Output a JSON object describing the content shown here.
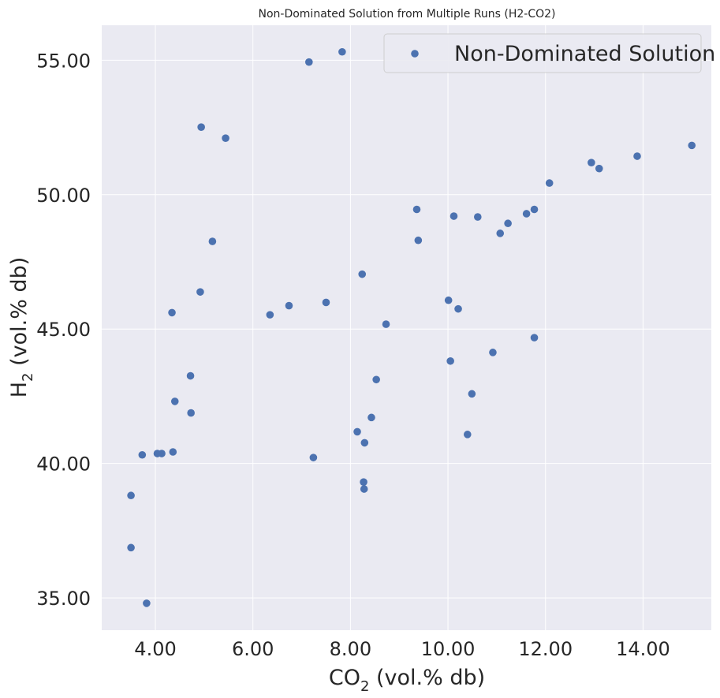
{
  "chart_data": {
    "type": "scatter",
    "title": "Non-Dominated Solution from Multiple Runs (H2-CO2)",
    "xlabel": {
      "main": "CO",
      "sub": "2",
      "rest": " (vol.% db)"
    },
    "ylabel": {
      "main": "H",
      "sub": "2",
      "rest": " (vol.% db)"
    },
    "xlim": [
      2.9,
      15.4
    ],
    "ylim": [
      33.8,
      56.3
    ],
    "xticks": [
      4,
      6,
      8,
      10,
      12,
      14
    ],
    "yticks": [
      35,
      40,
      45,
      50,
      55
    ],
    "xtick_labels": [
      "4.00",
      "6.00",
      "8.00",
      "10.00",
      "12.00",
      "14.00"
    ],
    "ytick_labels": [
      "35.00",
      "40.00",
      "45.00",
      "50.00",
      "55.00"
    ],
    "grid": true,
    "legend": {
      "position": "top-right",
      "label": "Non-Dominated Solution"
    },
    "colors": {
      "background": "#eaeaf2",
      "grid": "#ffffff",
      "point": "#4c72b0"
    },
    "series": [
      {
        "name": "Non-Dominated Solution",
        "points": [
          [
            7.15,
            54.93
          ],
          [
            7.83,
            55.31
          ],
          [
            4.94,
            52.51
          ],
          [
            5.44,
            52.1
          ],
          [
            5.17,
            48.26
          ],
          [
            4.92,
            46.38
          ],
          [
            4.34,
            45.61
          ],
          [
            6.35,
            45.53
          ],
          [
            6.74,
            45.87
          ],
          [
            7.5,
            45.99
          ],
          [
            8.24,
            47.04
          ],
          [
            8.73,
            45.18
          ],
          [
            8.53,
            43.12
          ],
          [
            8.43,
            41.71
          ],
          [
            8.14,
            41.18
          ],
          [
            8.29,
            40.77
          ],
          [
            8.27,
            39.31
          ],
          [
            8.28,
            39.05
          ],
          [
            7.24,
            40.22
          ],
          [
            4.72,
            43.26
          ],
          [
            4.4,
            42.31
          ],
          [
            4.73,
            41.88
          ],
          [
            4.36,
            40.43
          ],
          [
            4.13,
            40.37
          ],
          [
            4.04,
            40.37
          ],
          [
            3.73,
            40.32
          ],
          [
            3.5,
            38.81
          ],
          [
            3.5,
            36.87
          ],
          [
            3.82,
            34.8
          ],
          [
            9.36,
            49.45
          ],
          [
            9.39,
            48.3
          ],
          [
            10.12,
            49.2
          ],
          [
            10.61,
            49.17
          ],
          [
            11.23,
            48.93
          ],
          [
            11.07,
            48.56
          ],
          [
            11.61,
            49.29
          ],
          [
            11.77,
            49.45
          ],
          [
            12.08,
            50.43
          ],
          [
            12.94,
            51.19
          ],
          [
            13.1,
            50.97
          ],
          [
            13.88,
            51.43
          ],
          [
            15.0,
            51.83
          ],
          [
            10.01,
            46.07
          ],
          [
            10.21,
            45.75
          ],
          [
            10.05,
            43.81
          ],
          [
            10.92,
            44.13
          ],
          [
            11.77,
            44.68
          ],
          [
            10.49,
            42.59
          ],
          [
            10.4,
            41.08
          ]
        ]
      }
    ]
  }
}
